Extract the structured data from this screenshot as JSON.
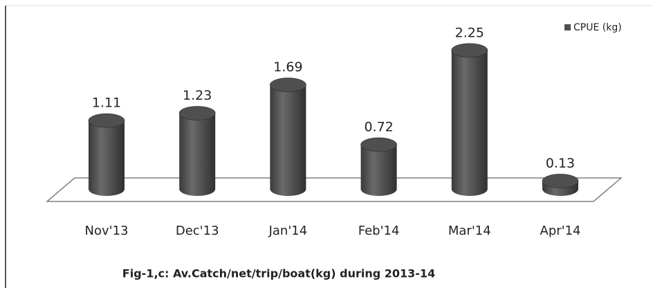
{
  "chart_data": {
    "type": "bar3d",
    "title": "Fig-1,c: Av.Catch/net/trip/boat(kg) during 2013-14",
    "categories": [
      "Nov'13",
      "Dec'13",
      "Jan'14",
      "Feb'14",
      "Mar'14",
      "Apr'14"
    ],
    "series": [
      {
        "name": "CPUE (kg)",
        "color": "#4f4f4f",
        "values": [
          1.11,
          1.23,
          1.69,
          0.72,
          2.25,
          0.13
        ]
      }
    ],
    "legend": "top-right"
  }
}
